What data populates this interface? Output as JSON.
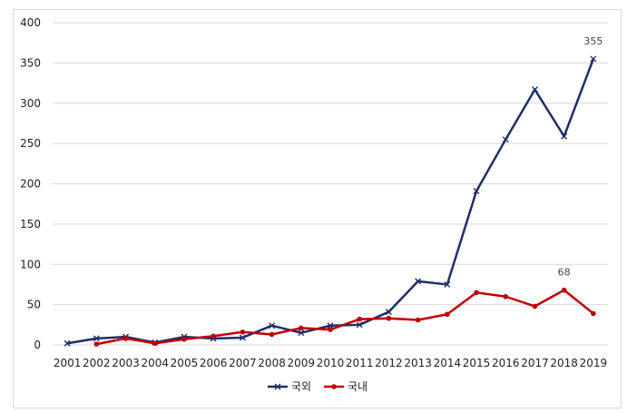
{
  "chart_data": {
    "type": "line",
    "title": "",
    "xlabel": "",
    "ylabel": "",
    "x": [
      "2001",
      "2002",
      "2003",
      "2004",
      "2005",
      "2006",
      "2007",
      "2008",
      "2009",
      "2010",
      "2011",
      "2012",
      "2013",
      "2014",
      "2015",
      "2016",
      "2017",
      "2018",
      "2019"
    ],
    "ylim": [
      0,
      400
    ],
    "yticks": [
      0,
      50,
      100,
      150,
      200,
      250,
      300,
      350,
      400
    ],
    "grid": true,
    "legend_position": "bottom",
    "series": [
      {
        "name": "국외",
        "color": "#1f2d6b",
        "marker": "x",
        "values": [
          2,
          8,
          10,
          3,
          10,
          8,
          9,
          24,
          15,
          24,
          25,
          41,
          79,
          75,
          191,
          255,
          317,
          259,
          355
        ],
        "data_labels": {
          "2019": "355"
        }
      },
      {
        "name": "국내",
        "color": "#c00000",
        "marker": "circle",
        "values": [
          null,
          1,
          8,
          2,
          7,
          11,
          16,
          13,
          21,
          19,
          32,
          33,
          31,
          38,
          65,
          60,
          48,
          68,
          39
        ],
        "data_labels": {
          "2018": "68"
        }
      }
    ]
  }
}
